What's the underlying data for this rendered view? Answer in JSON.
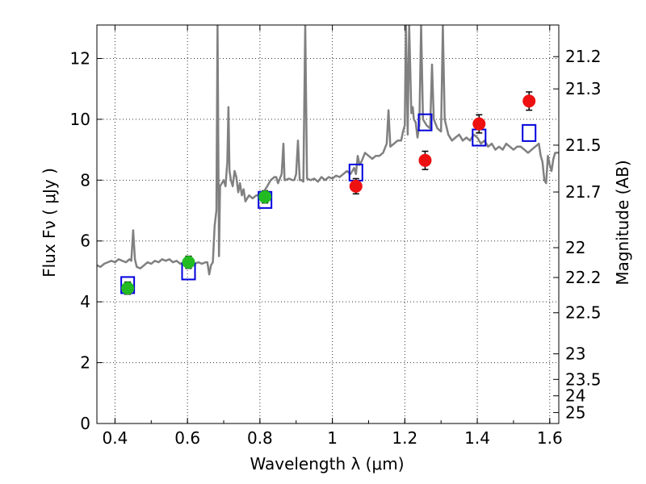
{
  "chart_data": {
    "type": "scatter",
    "xlabel": "Wavelength  λ (μm)",
    "ylabel": "Flux  Fν  ( μJy )",
    "ylabel_right": "Magnitude (AB)",
    "xlim": [
      0.35,
      1.625
    ],
    "ylim": [
      0,
      13.1
    ],
    "grid": true,
    "x_ticks": [
      0.4,
      0.6,
      0.8,
      1.0,
      1.2,
      1.4,
      1.6
    ],
    "x_tick_labels": [
      "0.4",
      "0.6",
      "0.8",
      "1",
      "1.2",
      "1.4",
      "1.6"
    ],
    "y_ticks": [
      0,
      2,
      4,
      6,
      8,
      10,
      12
    ],
    "y_tick_labels": [
      "0",
      "2",
      "4",
      "6",
      "8",
      "10",
      "12"
    ],
    "right_ticks": [
      {
        "label": "21.2",
        "flux": 12.06
      },
      {
        "label": "21.3",
        "flux": 11.0
      },
      {
        "label": "21.5",
        "flux": 9.15
      },
      {
        "label": "21.7",
        "flux": 7.61
      },
      {
        "label": "22",
        "flux": 5.78
      },
      {
        "label": "22.2",
        "flux": 4.8
      },
      {
        "label": "22.5",
        "flux": 3.64
      },
      {
        "label": "23",
        "flux": 2.29
      },
      {
        "label": "23.5",
        "flux": 1.45
      },
      {
        "label": "24",
        "flux": 0.91
      },
      {
        "label": "25",
        "flux": 0.36
      }
    ],
    "colors": {
      "spectrum": "#808080",
      "green": "#22bb22",
      "red": "#ee1111",
      "model": "#0000dd",
      "errorbar": "#000000"
    },
    "series": [
      {
        "style": "line",
        "points": [
          [
            0.35,
            5.2
          ],
          [
            0.36,
            5.15
          ],
          [
            0.37,
            5.25
          ],
          [
            0.38,
            5.3
          ],
          [
            0.39,
            5.35
          ],
          [
            0.4,
            5.3
          ],
          [
            0.41,
            5.4
          ],
          [
            0.42,
            5.35
          ],
          [
            0.43,
            5.3
          ],
          [
            0.44,
            5.4
          ],
          [
            0.445,
            5.35
          ],
          [
            0.45,
            6.35
          ],
          [
            0.455,
            5.4
          ],
          [
            0.46,
            5.15
          ],
          [
            0.47,
            5.1
          ],
          [
            0.48,
            5.2
          ],
          [
            0.49,
            5.3
          ],
          [
            0.5,
            5.25
          ],
          [
            0.51,
            5.35
          ],
          [
            0.52,
            5.3
          ],
          [
            0.53,
            5.4
          ],
          [
            0.54,
            5.35
          ],
          [
            0.55,
            5.4
          ],
          [
            0.56,
            5.3
          ],
          [
            0.57,
            5.35
          ],
          [
            0.58,
            5.25
          ],
          [
            0.59,
            5.3
          ],
          [
            0.6,
            5.25
          ],
          [
            0.61,
            5.3
          ],
          [
            0.62,
            5.25
          ],
          [
            0.63,
            5.3
          ],
          [
            0.64,
            5.25
          ],
          [
            0.65,
            5.3
          ],
          [
            0.655,
            5.3
          ],
          [
            0.66,
            4.9
          ],
          [
            0.665,
            5.2
          ],
          [
            0.67,
            5.3
          ],
          [
            0.675,
            6.5
          ],
          [
            0.68,
            7.0
          ],
          [
            0.683,
            13.1
          ],
          [
            0.687,
            5.5
          ],
          [
            0.69,
            7.8
          ],
          [
            0.695,
            7.9
          ],
          [
            0.7,
            8.0
          ],
          [
            0.705,
            7.8
          ],
          [
            0.71,
            8.6
          ],
          [
            0.713,
            10.4
          ],
          [
            0.716,
            8.3
          ],
          [
            0.72,
            8.0
          ],
          [
            0.725,
            7.8
          ],
          [
            0.73,
            8.3
          ],
          [
            0.735,
            8.1
          ],
          [
            0.74,
            7.6
          ],
          [
            0.745,
            7.9
          ],
          [
            0.75,
            7.5
          ],
          [
            0.755,
            7.7
          ],
          [
            0.76,
            7.3
          ],
          [
            0.77,
            7.5
          ],
          [
            0.78,
            7.4
          ],
          [
            0.79,
            7.5
          ],
          [
            0.8,
            7.5
          ],
          [
            0.81,
            7.6
          ],
          [
            0.82,
            7.8
          ],
          [
            0.83,
            8.0
          ],
          [
            0.84,
            8.1
          ],
          [
            0.845,
            8.1
          ],
          [
            0.85,
            7.9
          ],
          [
            0.86,
            8.2
          ],
          [
            0.865,
            9.2
          ],
          [
            0.868,
            8.0
          ],
          [
            0.87,
            8.0
          ],
          [
            0.88,
            8.05
          ],
          [
            0.89,
            8.0
          ],
          [
            0.895,
            8.0
          ],
          [
            0.9,
            8.2
          ],
          [
            0.905,
            9.3
          ],
          [
            0.91,
            8.0
          ],
          [
            0.915,
            8.0
          ],
          [
            0.92,
            7.95
          ],
          [
            0.925,
            13.1
          ],
          [
            0.93,
            8.05
          ],
          [
            0.94,
            8.0
          ],
          [
            0.95,
            8.05
          ],
          [
            0.96,
            7.95
          ],
          [
            0.97,
            8.1
          ],
          [
            0.98,
            8.0
          ],
          [
            0.99,
            8.1
          ],
          [
            1.0,
            8.05
          ],
          [
            1.01,
            8.15
          ],
          [
            1.02,
            8.1
          ],
          [
            1.03,
            8.2
          ],
          [
            1.04,
            8.3
          ],
          [
            1.05,
            8.2
          ],
          [
            1.06,
            8.4
          ],
          [
            1.065,
            8.2
          ],
          [
            1.07,
            8.8
          ],
          [
            1.075,
            8.5
          ],
          [
            1.08,
            8.6
          ],
          [
            1.09,
            8.9
          ],
          [
            1.1,
            8.8
          ],
          [
            1.11,
            8.7
          ],
          [
            1.12,
            8.8
          ],
          [
            1.13,
            8.8
          ],
          [
            1.14,
            8.9
          ],
          [
            1.15,
            9.2
          ],
          [
            1.155,
            10.3
          ],
          [
            1.16,
            9.1
          ],
          [
            1.17,
            9.2
          ],
          [
            1.18,
            9.3
          ],
          [
            1.19,
            9.3
          ],
          [
            1.195,
            9.6
          ],
          [
            1.2,
            9.8
          ],
          [
            1.203,
            13.1
          ],
          [
            1.208,
            9.5
          ],
          [
            1.212,
            13.1
          ],
          [
            1.218,
            10.2
          ],
          [
            1.222,
            10.4
          ],
          [
            1.225,
            10.0
          ],
          [
            1.23,
            9.9
          ],
          [
            1.235,
            9.4
          ],
          [
            1.24,
            9.8
          ],
          [
            1.245,
            13.1
          ],
          [
            1.25,
            10.0
          ],
          [
            1.26,
            9.8
          ],
          [
            1.27,
            9.7
          ],
          [
            1.275,
            11.8
          ],
          [
            1.28,
            10.0
          ],
          [
            1.29,
            9.7
          ],
          [
            1.3,
            9.6
          ],
          [
            1.305,
            13.1
          ],
          [
            1.31,
            10.0
          ],
          [
            1.32,
            9.5
          ],
          [
            1.33,
            9.3
          ],
          [
            1.34,
            9.4
          ],
          [
            1.35,
            9.5
          ],
          [
            1.36,
            9.3
          ],
          [
            1.37,
            9.4
          ],
          [
            1.38,
            9.3
          ],
          [
            1.39,
            9.5
          ],
          [
            1.4,
            9.4
          ],
          [
            1.41,
            9.2
          ],
          [
            1.42,
            9.3
          ],
          [
            1.43,
            9.1
          ],
          [
            1.44,
            9.2
          ],
          [
            1.45,
            9.0
          ],
          [
            1.46,
            9.1
          ],
          [
            1.47,
            9.0
          ],
          [
            1.48,
            9.2
          ],
          [
            1.49,
            9.1
          ],
          [
            1.5,
            9.0
          ],
          [
            1.51,
            9.1
          ],
          [
            1.52,
            9.1
          ],
          [
            1.53,
            9.0
          ],
          [
            1.54,
            8.9
          ],
          [
            1.55,
            9.0
          ],
          [
            1.56,
            9.1
          ],
          [
            1.57,
            9.2
          ],
          [
            1.575,
            8.8
          ],
          [
            1.58,
            8.6
          ],
          [
            1.585,
            8.0
          ],
          [
            1.59,
            7.9
          ],
          [
            1.595,
            8.8
          ],
          [
            1.6,
            8.5
          ],
          [
            1.605,
            8.3
          ],
          [
            1.61,
            8.7
          ],
          [
            1.615,
            8.9
          ],
          [
            1.625,
            8.9
          ]
        ]
      },
      {
        "style": "filled-circle",
        "color": "green",
        "points": [
          {
            "x": 0.435,
            "y": 4.45,
            "err": 0.2
          },
          {
            "x": 0.603,
            "y": 5.3,
            "err": 0.2
          },
          {
            "x": 0.814,
            "y": 7.45,
            "err": 0.2
          }
        ]
      },
      {
        "style": "filled-circle",
        "color": "red",
        "points": [
          {
            "x": 1.065,
            "y": 7.8,
            "err": 0.25
          },
          {
            "x": 1.256,
            "y": 8.65,
            "err": 0.3
          },
          {
            "x": 1.405,
            "y": 9.85,
            "err": 0.3
          },
          {
            "x": 1.543,
            "y": 10.6,
            "err": 0.3
          }
        ]
      },
      {
        "style": "open-square",
        "color": "model",
        "points": [
          {
            "x": 0.435,
            "y": 4.55
          },
          {
            "x": 0.603,
            "y": 5.0
          },
          {
            "x": 0.814,
            "y": 7.35
          },
          {
            "x": 1.065,
            "y": 8.25
          },
          {
            "x": 1.256,
            "y": 9.9
          },
          {
            "x": 1.405,
            "y": 9.4
          },
          {
            "x": 1.543,
            "y": 9.55
          }
        ]
      }
    ]
  }
}
